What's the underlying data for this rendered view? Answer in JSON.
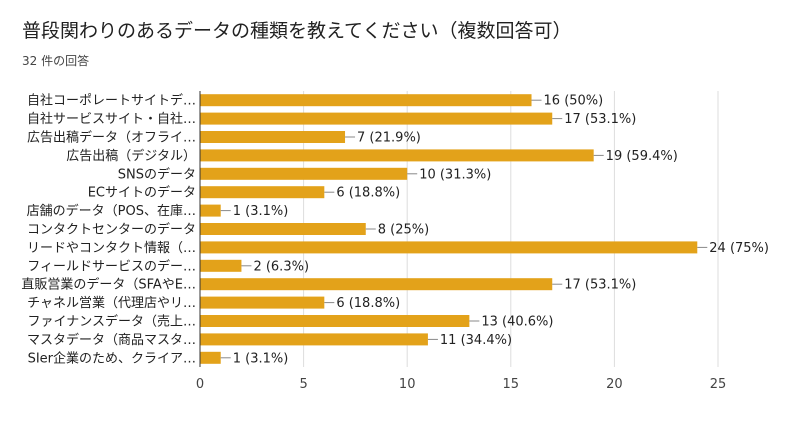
{
  "page": {
    "title": "普段関わりのあるデータの種類を教えてください（複数回答可）",
    "subtitle": "32 件の回答"
  },
  "chart_data": {
    "type": "bar",
    "orientation": "horizontal",
    "title": "普段関わりのあるデータの種類を教えてください（複数回答可）",
    "subtitle": "32 件の回答",
    "categories": [
      "自社コーポレートサイトデ…",
      "自社サービスサイト・自社…",
      "広告出稿データ（オフライ…",
      "広告出稿（デジタル）",
      "SNSのデータ",
      "ECサイトのデータ",
      "店舗のデータ（POS、在庫…",
      "コンタクトセンターのデータ",
      "リードやコンタクト情報（…",
      "フィールドサービスのデー…",
      "直販営業のデータ（SFAやE…",
      "チャネル営業（代理店やリ…",
      "ファイナンスデータ（売上…",
      "マスタデータ（商品マスタ…",
      "SIer企業のため、クライア…"
    ],
    "values": [
      16,
      17,
      7,
      19,
      10,
      6,
      1,
      8,
      24,
      2,
      17,
      6,
      13,
      11,
      1
    ],
    "value_labels": [
      "16 (50%)",
      "17 (53.1%)",
      "7 (21.9%)",
      "19 (59.4%)",
      "10 (31.3%)",
      "6 (18.8%)",
      "1 (3.1%)",
      "8 (25%)",
      "24 (75%)",
      "2 (6.3%)",
      "17 (53.1%)",
      "6 (18.8%)",
      "13 (40.6%)",
      "11 (34.4%)",
      "1 (3.1%)"
    ],
    "xlim": [
      0,
      25
    ],
    "xticks": [
      "0",
      "5",
      "10",
      "15",
      "20",
      "25"
    ],
    "xtick_values": [
      0,
      5,
      10,
      15,
      20,
      25
    ],
    "grid": true,
    "bar_color": "#e3a21a",
    "grid_color": "#dddddd",
    "axis_color": "#333333"
  }
}
